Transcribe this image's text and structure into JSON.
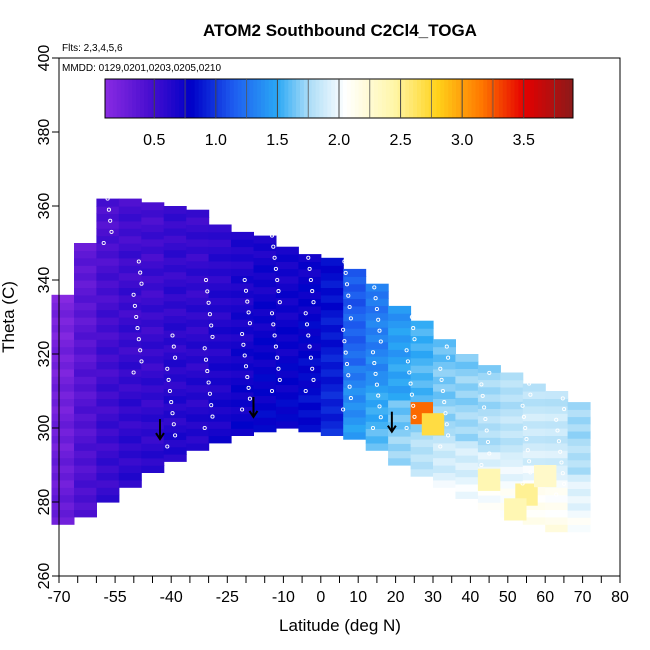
{
  "chart_data": {
    "type": "heatmap",
    "title": "ATOM2 Southbound C2Cl4_TOGA",
    "annotations": {
      "flights": "Flts: 2,3,4,5,6",
      "dates": "MMDD: 0129,0201,0203,0205,0210"
    },
    "xlabel": "Latitude (deg N)",
    "ylabel": "Theta (C)",
    "xlim": [
      -70,
      80
    ],
    "ylim": [
      260,
      400
    ],
    "x_ticks": [
      {
        "value": -70,
        "label": "-70"
      },
      {
        "value": -55,
        "label": "-55"
      },
      {
        "value": -40,
        "label": "-40"
      },
      {
        "value": -25,
        "label": "-25"
      },
      {
        "value": -10,
        "label": "-10"
      },
      {
        "value": 0,
        "label": "0"
      },
      {
        "value": 10,
        "label": "10"
      },
      {
        "value": 20,
        "label": "20"
      },
      {
        "value": 30,
        "label": "30"
      },
      {
        "value": 40,
        "label": "40"
      },
      {
        "value": 50,
        "label": "50"
      },
      {
        "value": 60,
        "label": "60"
      },
      {
        "value": 70,
        "label": "70"
      },
      {
        "value": 80,
        "label": "80"
      }
    ],
    "x_minor_ticks": [
      -65,
      -60,
      -50,
      -45,
      -35,
      -30,
      -20,
      -15,
      -5,
      5,
      15,
      25,
      35,
      45,
      55,
      65,
      75
    ],
    "y_ticks": [
      {
        "value": 260,
        "label": "260"
      },
      {
        "value": 280,
        "label": "280"
      },
      {
        "value": 300,
        "label": "300"
      },
      {
        "value": 320,
        "label": "320"
      },
      {
        "value": 340,
        "label": "340"
      },
      {
        "value": 360,
        "label": "360"
      },
      {
        "value": 380,
        "label": "380"
      },
      {
        "value": 400,
        "label": "400"
      }
    ],
    "colorbar": {
      "range": [
        0.1,
        3.9
      ],
      "ticks": [
        {
          "value": 0.5,
          "label": "0.5"
        },
        {
          "value": 1.0,
          "label": "1.0"
        },
        {
          "value": 1.5,
          "label": "1.5"
        },
        {
          "value": 2.0,
          "label": "2.0"
        },
        {
          "value": 2.5,
          "label": "2.5"
        },
        {
          "value": 3.0,
          "label": "3.0"
        },
        {
          "value": 3.5,
          "label": "3.5"
        }
      ],
      "stops": [
        {
          "v": 0.1,
          "color": "#8a2be2"
        },
        {
          "v": 0.45,
          "color": "#4b0fd0"
        },
        {
          "v": 0.8,
          "color": "#0000c8"
        },
        {
          "v": 1.15,
          "color": "#1e5ef0"
        },
        {
          "v": 1.5,
          "color": "#2aa8f5"
        },
        {
          "v": 1.75,
          "color": "#a9dcf7"
        },
        {
          "v": 2.05,
          "color": "#ffffff"
        },
        {
          "v": 2.45,
          "color": "#fff6a8"
        },
        {
          "v": 2.8,
          "color": "#ffd21a"
        },
        {
          "v": 3.15,
          "color": "#ff7a00"
        },
        {
          "v": 3.5,
          "color": "#e60000"
        },
        {
          "v": 3.9,
          "color": "#8b1a1a"
        }
      ]
    },
    "columns": [
      {
        "lat": -69,
        "low": 274,
        "high": 336,
        "value": 0.3
      },
      {
        "lat": -63,
        "low": 276,
        "high": 350,
        "value": 0.45
      },
      {
        "lat": -57,
        "low": 280,
        "high": 362,
        "value": 0.55
      },
      {
        "lat": -51,
        "low": 284,
        "high": 362,
        "value": 0.6
      },
      {
        "lat": -45,
        "low": 288,
        "high": 361,
        "value": 0.6
      },
      {
        "lat": -39,
        "low": 291,
        "high": 360,
        "value": 0.65
      },
      {
        "lat": -33,
        "low": 294,
        "high": 359,
        "value": 0.65
      },
      {
        "lat": -27,
        "low": 296,
        "high": 355,
        "value": 0.7
      },
      {
        "lat": -21,
        "low": 298,
        "high": 353,
        "value": 0.75
      },
      {
        "lat": -15,
        "low": 299,
        "high": 352,
        "value": 0.8
      },
      {
        "lat": -9,
        "low": 300,
        "high": 349,
        "value": 0.8
      },
      {
        "lat": -3,
        "low": 299,
        "high": 347,
        "value": 0.85
      },
      {
        "lat": 3,
        "low": 298,
        "high": 346,
        "value": 0.95
      },
      {
        "lat": 9,
        "low": 297,
        "high": 343,
        "value": 1.2
      },
      {
        "lat": 15,
        "low": 294,
        "high": 339,
        "value": 1.35
      },
      {
        "lat": 21,
        "low": 290,
        "high": 333,
        "value": 1.5
      },
      {
        "lat": 27,
        "low": 287,
        "high": 329,
        "value": 1.6
      },
      {
        "lat": 33,
        "low": 284,
        "high": 324,
        "value": 1.7
      },
      {
        "lat": 39,
        "low": 281,
        "high": 320,
        "value": 1.75
      },
      {
        "lat": 45,
        "low": 278,
        "high": 317,
        "value": 1.8
      },
      {
        "lat": 51,
        "low": 276,
        "high": 315,
        "value": 1.85
      },
      {
        "lat": 57,
        "low": 274,
        "high": 312,
        "value": 1.9
      },
      {
        "lat": 63,
        "low": 272,
        "high": 310,
        "value": 1.9
      },
      {
        "lat": 69,
        "low": 272,
        "high": 307,
        "value": 1.8
      }
    ],
    "hotspots": [
      {
        "lat": 27,
        "theta": 304,
        "value": 3.2
      },
      {
        "lat": 30,
        "theta": 301,
        "value": 2.7
      },
      {
        "lat": 45,
        "theta": 286,
        "value": 2.4
      },
      {
        "lat": 55,
        "theta": 282,
        "value": 2.5
      },
      {
        "lat": 60,
        "theta": 287,
        "value": 2.3
      },
      {
        "lat": 52,
        "theta": 278,
        "value": 2.4
      }
    ],
    "tropopause_arrows": [
      {
        "lat": -43,
        "theta": 297
      },
      {
        "lat": -18,
        "theta": 303
      },
      {
        "lat": 19,
        "theta": 299
      }
    ],
    "sample_tracks": [
      {
        "lat": -57,
        "theta_from": 350,
        "theta_to": 362
      },
      {
        "lat": -49,
        "theta_from": 315,
        "theta_to": 345
      },
      {
        "lat": -40,
        "theta_from": 295,
        "theta_to": 325
      },
      {
        "lat": -30,
        "theta_from": 300,
        "theta_to": 340
      },
      {
        "lat": -20,
        "theta_from": 305,
        "theta_to": 340
      },
      {
        "lat": -12,
        "theta_from": 310,
        "theta_to": 352
      },
      {
        "lat": -3,
        "theta_from": 310,
        "theta_to": 346
      },
      {
        "lat": 7,
        "theta_from": 305,
        "theta_to": 345
      },
      {
        "lat": 15,
        "theta_from": 300,
        "theta_to": 338
      },
      {
        "lat": 24,
        "theta_from": 300,
        "theta_to": 330
      },
      {
        "lat": 33,
        "theta_from": 295,
        "theta_to": 325
      },
      {
        "lat": 44,
        "theta_from": 290,
        "theta_to": 318
      },
      {
        "lat": 55,
        "theta_from": 285,
        "theta_to": 312
      },
      {
        "lat": 64,
        "theta_from": 282,
        "theta_to": 308
      }
    ]
  }
}
